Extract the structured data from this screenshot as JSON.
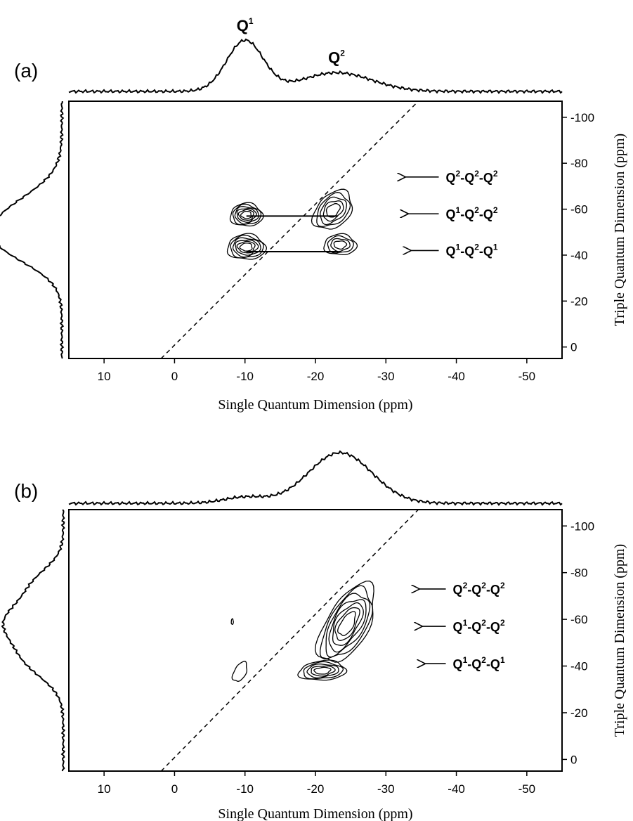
{
  "chart_data": [
    {
      "type": "contour",
      "panel_label": "(a)",
      "xlabel": "Single Quantum Dimension (ppm)",
      "ylabel": "Triple Quantum Dimension (ppm)",
      "xlim": [
        15,
        -55
      ],
      "ylim": [
        5,
        -107
      ],
      "x_ticks": [
        10,
        0,
        -10,
        -20,
        -30,
        -40,
        -50
      ],
      "x_tick_labels": [
        "10",
        "0",
        "-10",
        "-20",
        "-30",
        "-40",
        "-50"
      ],
      "y_ticks": [
        -100,
        -80,
        -60,
        -40,
        -20,
        0
      ],
      "y_tick_labels": [
        "-100",
        "-80",
        "-60",
        "-40",
        "-20",
        "0"
      ],
      "diagonal": {
        "style": "dashed",
        "from": [
          1.9,
          5
        ],
        "to": [
          -34.6,
          -107
        ]
      },
      "top_projection": {
        "peaks": [
          {
            "label": "Q",
            "sup": "1",
            "center": -10,
            "height": 1.0,
            "width": 2.6
          },
          {
            "label": "Q",
            "sup": "2",
            "center": -23,
            "height": 0.37,
            "width": 5.0
          }
        ]
      },
      "side_projection": {
        "peaks": [
          {
            "center": -56,
            "height": 1.0,
            "width": 11
          },
          {
            "center": -43,
            "height": 0.65,
            "width": 9
          }
        ]
      },
      "contour_groups": [
        {
          "center": [
            -10.2,
            -57.5
          ],
          "spread": [
            2.3,
            5.0
          ],
          "angle": 0,
          "levels": 6
        },
        {
          "center": [
            -10.2,
            -43.5
          ],
          "spread": [
            2.7,
            5.5
          ],
          "angle": 0,
          "levels": 6
        },
        {
          "center": [
            -22.5,
            -59.5
          ],
          "spread": [
            2.6,
            8.5
          ],
          "angle": 0.35,
          "levels": 5
        },
        {
          "center": [
            -23.5,
            -44.5
          ],
          "spread": [
            2.3,
            4.5
          ],
          "angle": 0,
          "levels": 4
        }
      ],
      "connectors": [
        {
          "from": [
            -10.2,
            -57
          ],
          "to": [
            -23.2,
            -57
          ]
        },
        {
          "from": [
            -10.2,
            -41.5
          ],
          "to": [
            -23.2,
            -41.5
          ]
        }
      ],
      "annotations": [
        {
          "parts": [
            "Q",
            "2",
            "-Q",
            "2",
            "-Q",
            "2"
          ],
          "arrow_from": -32.8,
          "text_at": -38.5,
          "y": -74
        },
        {
          "parts": [
            "Q",
            "1",
            "-Q",
            "2",
            "-Q",
            "2"
          ],
          "arrow_from": -33.2,
          "text_at": -38.5,
          "y": -58
        },
        {
          "parts": [
            "Q",
            "1",
            "-Q",
            "2",
            "-Q",
            "1"
          ],
          "arrow_from": -33.6,
          "text_at": -38.5,
          "y": -42
        }
      ]
    },
    {
      "type": "contour",
      "panel_label": "(b)",
      "xlabel": "Single Quantum Dimension (ppm)",
      "ylabel": "Triple Quantum Dimension (ppm)",
      "xlim": [
        15,
        -55
      ],
      "ylim": [
        5,
        -107
      ],
      "x_ticks": [
        10,
        0,
        -10,
        -20,
        -30,
        -40,
        -50
      ],
      "x_tick_labels": [
        "10",
        "0",
        "-10",
        "-20",
        "-30",
        "-40",
        "-50"
      ],
      "y_ticks": [
        -100,
        -80,
        -60,
        -40,
        -20,
        0
      ],
      "y_tick_labels": [
        "-100",
        "-80",
        "-60",
        "-40",
        "-20",
        "0"
      ],
      "diagonal": {
        "style": "dashed",
        "from": [
          1.9,
          5
        ],
        "to": [
          -34.6,
          -107
        ]
      },
      "top_projection": {
        "peaks": [
          {
            "center": -10,
            "height": 0.12,
            "width": 3.0
          },
          {
            "center": -23.5,
            "height": 1.0,
            "width": 4.5
          }
        ]
      },
      "side_projection": {
        "peaks": [
          {
            "center": -59,
            "height": 1.0,
            "width": 9
          },
          {
            "center": -42,
            "height": 0.55,
            "width": 8
          },
          {
            "center": -76,
            "height": 0.4,
            "width": 7
          }
        ]
      },
      "contour_groups": [
        {
          "center": [
            -24.5,
            -58
          ],
          "spread": [
            3.3,
            17
          ],
          "angle": 0.42,
          "levels": 7
        },
        {
          "center": [
            -21,
            -38
          ],
          "spread": [
            3.3,
            4.2
          ],
          "angle": 0.35,
          "levels": 5
        },
        {
          "center": [
            -9.3,
            -37.5
          ],
          "spread": [
            0.9,
            4.2
          ],
          "angle": 0.35,
          "levels": 1
        },
        {
          "center": [
            -8.2,
            -59
          ],
          "spread": [
            0.15,
            1.2
          ],
          "angle": 0,
          "levels": 1
        }
      ],
      "connectors": [],
      "annotations": [
        {
          "parts": [
            "Q",
            "2",
            "-Q",
            "2",
            "-Q",
            "2"
          ],
          "arrow_from": -34.8,
          "text_at": -39.5,
          "y": -73
        },
        {
          "parts": [
            "Q",
            "1",
            "-Q",
            "2",
            "-Q",
            "2"
          ],
          "arrow_from": -35.2,
          "text_at": -39.5,
          "y": -57
        },
        {
          "parts": [
            "Q",
            "1",
            "-Q",
            "2",
            "-Q",
            "1"
          ],
          "arrow_from": -35.6,
          "text_at": -39.5,
          "y": -41
        }
      ]
    }
  ]
}
